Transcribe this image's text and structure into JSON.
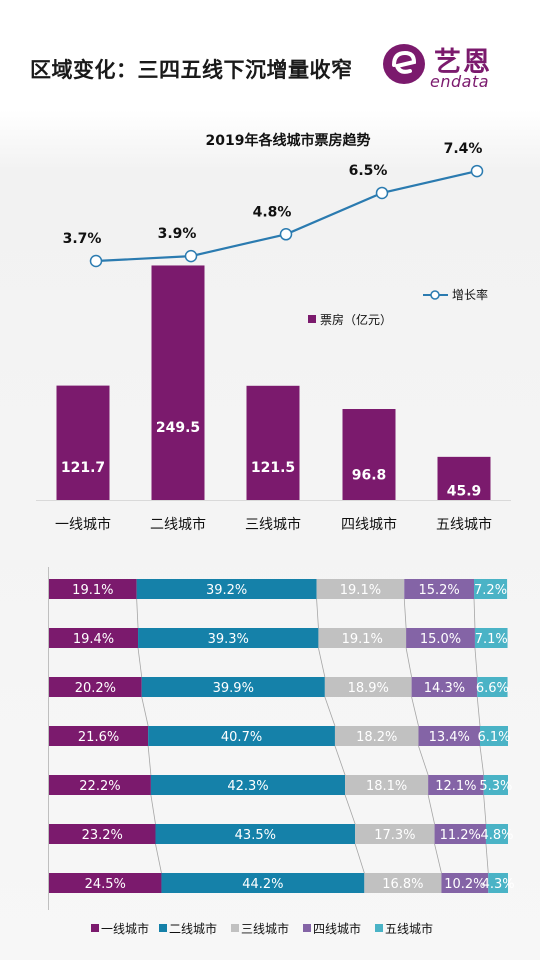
{
  "header": {
    "title": "区域变化：三四五线下沉增量收窄",
    "logo_name": "艺恩",
    "logo_sub": "endata"
  },
  "colors": {
    "purple": "#7b1a6d",
    "blue": "#1581a9",
    "gray": "#c1c1c1",
    "lavender": "#8464a6",
    "teal": "#4ab3c6",
    "line": "#2b7bb0"
  },
  "chart_data": [
    {
      "type": "bar",
      "title": "2019年各线城市票房趋势",
      "categories": [
        "一线城市",
        "二线城市",
        "三线城市",
        "四线城市",
        "五线城市"
      ],
      "series": [
        {
          "name": "票房（亿元）",
          "values": [
            121.7,
            249.5,
            121.5,
            96.8,
            45.9
          ],
          "value_labels": [
            "121.7",
            "249.5",
            "121.5",
            "96.8",
            "45.9"
          ]
        },
        {
          "name": "增长率",
          "type": "line",
          "values": [
            3.7,
            3.9,
            4.8,
            6.5,
            7.4
          ],
          "value_labels": [
            "3.7%",
            "3.9%",
            "4.8%",
            "6.5%",
            "7.4%"
          ]
        }
      ],
      "legend": "right",
      "grid": false
    },
    {
      "type": "bar",
      "stacked": "percent",
      "orientation": "horizontal",
      "series_names": [
        "一线城市",
        "二线城市",
        "三线城市",
        "四线城市",
        "五线城市"
      ],
      "rows": [
        {
          "values": [
            19.1,
            39.2,
            19.1,
            15.2,
            7.2
          ],
          "labels": [
            "19.1%",
            "39.2%",
            "19.1%",
            "15.2%",
            "7.2%"
          ]
        },
        {
          "values": [
            19.4,
            39.3,
            19.1,
            15.0,
            7.1
          ],
          "labels": [
            "19.4%",
            "39.3%",
            "19.1%",
            "15.0%",
            "7.1%"
          ]
        },
        {
          "values": [
            20.2,
            39.9,
            18.9,
            14.3,
            6.6
          ],
          "labels": [
            "20.2%",
            "39.9%",
            "18.9%",
            "14.3%",
            "6.6%"
          ]
        },
        {
          "values": [
            21.6,
            40.7,
            18.2,
            13.4,
            6.1
          ],
          "labels": [
            "21.6%",
            "40.7%",
            "18.2%",
            "13.4%",
            "6.1%"
          ]
        },
        {
          "values": [
            22.2,
            42.3,
            18.1,
            12.1,
            5.3
          ],
          "labels": [
            "22.2%",
            "42.3%",
            "18.1%",
            "12.1%",
            "5.3%"
          ]
        },
        {
          "values": [
            23.2,
            43.5,
            17.3,
            11.2,
            4.8
          ],
          "labels": [
            "23.2%",
            "43.5%",
            "17.3%",
            "11.2%",
            "4.8%"
          ]
        },
        {
          "values": [
            24.5,
            44.2,
            16.8,
            10.2,
            4.3
          ],
          "labels": [
            "24.5%",
            "44.2%",
            "16.8%",
            "10.2%",
            "4.3%"
          ]
        }
      ],
      "legend": "bottom"
    }
  ]
}
